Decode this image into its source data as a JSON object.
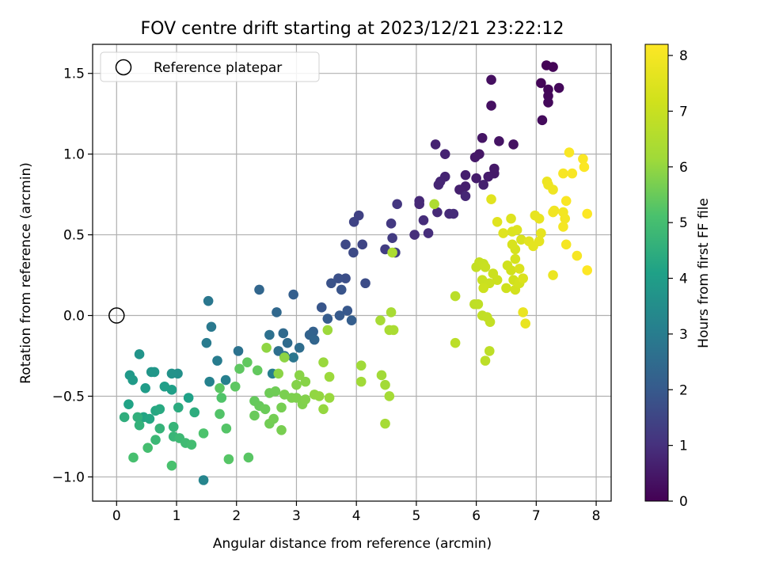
{
  "chart_data": {
    "type": "scatter",
    "title": "FOV centre drift starting at 2023/12/21 23:22:12",
    "xlabel": "Angular distance from reference (arcmin)",
    "ylabel": "Rotation from reference (arcmin)",
    "xlim": [
      -0.4,
      8.25
    ],
    "ylim": [
      -1.15,
      1.68
    ],
    "xticks": [
      0,
      1,
      2,
      3,
      4,
      5,
      6,
      7,
      8
    ],
    "yticks": [
      -1.0,
      -0.5,
      0.0,
      0.5,
      1.0,
      1.5
    ],
    "xtick_labels": [
      "0",
      "1",
      "2",
      "3",
      "4",
      "5",
      "6",
      "7",
      "8"
    ],
    "ytick_labels": [
      "−1.0",
      "−0.5",
      "0.0",
      "0.5",
      "1.0",
      "1.5"
    ],
    "grid": true,
    "legend": {
      "placement": "top-left",
      "entries": [
        {
          "label": "Reference platepar",
          "marker": "open-circle"
        }
      ]
    },
    "reference_point": {
      "x": 0,
      "y": 0
    },
    "colorbar": {
      "label": "Hours from first FF file",
      "colormap": "viridis",
      "range": [
        0,
        8.2
      ],
      "ticks": [
        0,
        1,
        2,
        3,
        4,
        5,
        6,
        7,
        8
      ],
      "tick_labels": [
        "0",
        "1",
        "2",
        "3",
        "4",
        "5",
        "6",
        "7",
        "8"
      ]
    },
    "points": [
      {
        "x": 7.17,
        "y": 1.55,
        "t": 0.05
      },
      {
        "x": 7.28,
        "y": 1.54,
        "t": 0.08
      },
      {
        "x": 7.08,
        "y": 1.44,
        "t": 0.1
      },
      {
        "x": 7.2,
        "y": 1.4,
        "t": 0.12
      },
      {
        "x": 7.38,
        "y": 1.41,
        "t": 0.14
      },
      {
        "x": 7.2,
        "y": 1.36,
        "t": 0.15
      },
      {
        "x": 7.2,
        "y": 1.32,
        "t": 0.17
      },
      {
        "x": 7.1,
        "y": 1.21,
        "t": 0.2
      },
      {
        "x": 6.25,
        "y": 1.46,
        "t": 0.3
      },
      {
        "x": 6.25,
        "y": 1.3,
        "t": 0.32
      },
      {
        "x": 6.62,
        "y": 1.06,
        "t": 0.35
      },
      {
        "x": 6.38,
        "y": 1.08,
        "t": 0.4
      },
      {
        "x": 6.1,
        "y": 1.1,
        "t": 0.42
      },
      {
        "x": 6.05,
        "y": 1.0,
        "t": 0.45
      },
      {
        "x": 5.98,
        "y": 0.98,
        "t": 0.48
      },
      {
        "x": 6.3,
        "y": 0.91,
        "t": 0.5
      },
      {
        "x": 6.3,
        "y": 0.88,
        "t": 0.52
      },
      {
        "x": 6.2,
        "y": 0.86,
        "t": 0.55
      },
      {
        "x": 6.0,
        "y": 0.85,
        "t": 0.57
      },
      {
        "x": 5.82,
        "y": 0.87,
        "t": 0.6
      },
      {
        "x": 5.82,
        "y": 0.8,
        "t": 0.62
      },
      {
        "x": 5.72,
        "y": 0.78,
        "t": 0.64
      },
      {
        "x": 6.12,
        "y": 0.81,
        "t": 0.66
      },
      {
        "x": 5.32,
        "y": 1.06,
        "t": 0.7
      },
      {
        "x": 5.48,
        "y": 1.0,
        "t": 0.72
      },
      {
        "x": 5.48,
        "y": 0.86,
        "t": 0.74
      },
      {
        "x": 5.4,
        "y": 0.83,
        "t": 0.76
      },
      {
        "x": 5.37,
        "y": 0.81,
        "t": 0.78
      },
      {
        "x": 5.82,
        "y": 0.74,
        "t": 0.8
      },
      {
        "x": 5.05,
        "y": 0.71,
        "t": 0.82
      },
      {
        "x": 5.05,
        "y": 0.69,
        "t": 0.84
      },
      {
        "x": 5.35,
        "y": 0.64,
        "t": 0.86
      },
      {
        "x": 5.55,
        "y": 0.63,
        "t": 0.88
      },
      {
        "x": 5.62,
        "y": 0.63,
        "t": 0.9
      },
      {
        "x": 5.12,
        "y": 0.59,
        "t": 0.92
      },
      {
        "x": 5.2,
        "y": 0.51,
        "t": 0.94
      },
      {
        "x": 4.97,
        "y": 0.5,
        "t": 0.96
      },
      {
        "x": 4.68,
        "y": 0.69,
        "t": 1.15
      },
      {
        "x": 4.58,
        "y": 0.57,
        "t": 1.2
      },
      {
        "x": 4.6,
        "y": 0.48,
        "t": 1.25
      },
      {
        "x": 4.48,
        "y": 0.41,
        "t": 1.3
      },
      {
        "x": 4.65,
        "y": 0.39,
        "t": 1.35
      },
      {
        "x": 4.04,
        "y": 0.62,
        "t": 1.4
      },
      {
        "x": 3.96,
        "y": 0.58,
        "t": 1.45
      },
      {
        "x": 4.1,
        "y": 0.44,
        "t": 1.5
      },
      {
        "x": 3.82,
        "y": 0.44,
        "t": 1.55
      },
      {
        "x": 3.95,
        "y": 0.39,
        "t": 1.6
      },
      {
        "x": 4.15,
        "y": 0.2,
        "t": 1.65
      },
      {
        "x": 3.82,
        "y": 0.23,
        "t": 1.7
      },
      {
        "x": 3.7,
        "y": 0.23,
        "t": 1.75
      },
      {
        "x": 3.58,
        "y": 0.2,
        "t": 1.8
      },
      {
        "x": 3.75,
        "y": 0.16,
        "t": 1.85
      },
      {
        "x": 3.42,
        "y": 0.05,
        "t": 1.9
      },
      {
        "x": 3.85,
        "y": 0.03,
        "t": 1.95
      },
      {
        "x": 3.72,
        "y": 0.0,
        "t": 2.0
      },
      {
        "x": 3.52,
        "y": -0.02,
        "t": 2.05
      },
      {
        "x": 3.92,
        "y": -0.03,
        "t": 2.1
      },
      {
        "x": 2.95,
        "y": 0.13,
        "t": 2.15
      },
      {
        "x": 3.28,
        "y": -0.1,
        "t": 2.2
      },
      {
        "x": 3.22,
        "y": -0.12,
        "t": 2.25
      },
      {
        "x": 3.3,
        "y": -0.15,
        "t": 2.3
      },
      {
        "x": 2.38,
        "y": 0.16,
        "t": 2.35
      },
      {
        "x": 2.67,
        "y": 0.02,
        "t": 2.4
      },
      {
        "x": 2.78,
        "y": -0.11,
        "t": 2.45
      },
      {
        "x": 2.85,
        "y": -0.17,
        "t": 2.5
      },
      {
        "x": 3.05,
        "y": -0.2,
        "t": 2.55
      },
      {
        "x": 2.7,
        "y": -0.22,
        "t": 2.6
      },
      {
        "x": 2.55,
        "y": -0.12,
        "t": 2.65
      },
      {
        "x": 2.03,
        "y": -0.22,
        "t": 2.7
      },
      {
        "x": 2.8,
        "y": -0.25,
        "t": 2.75
      },
      {
        "x": 2.95,
        "y": -0.26,
        "t": 2.8
      },
      {
        "x": 1.53,
        "y": 0.09,
        "t": 2.85
      },
      {
        "x": 1.58,
        "y": -0.07,
        "t": 2.9
      },
      {
        "x": 1.5,
        "y": -0.17,
        "t": 2.95
      },
      {
        "x": 1.68,
        "y": -0.28,
        "t": 3.0
      },
      {
        "x": 2.6,
        "y": -0.36,
        "t": 3.05
      },
      {
        "x": 1.82,
        "y": -0.4,
        "t": 3.1
      },
      {
        "x": 1.55,
        "y": -0.41,
        "t": 3.15
      },
      {
        "x": 1.45,
        "y": -1.02,
        "t": 3.25
      },
      {
        "x": 1.02,
        "y": -0.36,
        "t": 3.6
      },
      {
        "x": 0.92,
        "y": -0.36,
        "t": 3.65
      },
      {
        "x": 0.38,
        "y": -0.24,
        "t": 3.7
      },
      {
        "x": 0.58,
        "y": -0.35,
        "t": 3.75
      },
      {
        "x": 0.63,
        "y": -0.35,
        "t": 3.8
      },
      {
        "x": 0.22,
        "y": -0.37,
        "t": 3.85
      },
      {
        "x": 0.27,
        "y": -0.4,
        "t": 3.9
      },
      {
        "x": 0.48,
        "y": -0.45,
        "t": 3.95
      },
      {
        "x": 0.8,
        "y": -0.44,
        "t": 4.0
      },
      {
        "x": 0.92,
        "y": -0.46,
        "t": 4.05
      },
      {
        "x": 1.2,
        "y": -0.51,
        "t": 4.1
      },
      {
        "x": 0.2,
        "y": -0.55,
        "t": 4.15
      },
      {
        "x": 0.45,
        "y": -0.63,
        "t": 4.2
      },
      {
        "x": 0.55,
        "y": -0.64,
        "t": 4.25
      },
      {
        "x": 0.65,
        "y": -0.59,
        "t": 4.3
      },
      {
        "x": 0.72,
        "y": -0.58,
        "t": 4.35
      },
      {
        "x": 1.03,
        "y": -0.57,
        "t": 4.4
      },
      {
        "x": 1.3,
        "y": -0.6,
        "t": 4.45
      },
      {
        "x": 0.13,
        "y": -0.63,
        "t": 4.5
      },
      {
        "x": 0.35,
        "y": -0.63,
        "t": 4.55
      },
      {
        "x": 0.38,
        "y": -0.68,
        "t": 4.6
      },
      {
        "x": 0.72,
        "y": -0.7,
        "t": 4.65
      },
      {
        "x": 0.95,
        "y": -0.69,
        "t": 4.7
      },
      {
        "x": 0.95,
        "y": -0.75,
        "t": 4.75
      },
      {
        "x": 0.65,
        "y": -0.77,
        "t": 4.8
      },
      {
        "x": 1.05,
        "y": -0.76,
        "t": 4.85
      },
      {
        "x": 1.15,
        "y": -0.79,
        "t": 4.9
      },
      {
        "x": 1.25,
        "y": -0.8,
        "t": 4.95
      },
      {
        "x": 0.52,
        "y": -0.82,
        "t": 5.0
      },
      {
        "x": 0.28,
        "y": -0.88,
        "t": 5.05
      },
      {
        "x": 0.92,
        "y": -0.93,
        "t": 5.1
      },
      {
        "x": 1.45,
        "y": -0.73,
        "t": 5.15
      },
      {
        "x": 1.75,
        "y": -0.51,
        "t": 5.2
      },
      {
        "x": 1.72,
        "y": -0.61,
        "t": 5.22
      },
      {
        "x": 1.83,
        "y": -0.7,
        "t": 5.25
      },
      {
        "x": 1.87,
        "y": -0.89,
        "t": 5.27
      },
      {
        "x": 2.2,
        "y": -0.88,
        "t": 5.3
      },
      {
        "x": 1.72,
        "y": -0.45,
        "t": 5.32
      },
      {
        "x": 1.98,
        "y": -0.44,
        "t": 5.35
      },
      {
        "x": 2.05,
        "y": -0.33,
        "t": 5.37
      },
      {
        "x": 2.18,
        "y": -0.29,
        "t": 5.4
      },
      {
        "x": 2.35,
        "y": -0.34,
        "t": 5.42
      },
      {
        "x": 2.3,
        "y": -0.53,
        "t": 5.45
      },
      {
        "x": 2.38,
        "y": -0.56,
        "t": 5.47
      },
      {
        "x": 2.3,
        "y": -0.62,
        "t": 5.5
      },
      {
        "x": 2.48,
        "y": -0.58,
        "t": 5.52
      },
      {
        "x": 2.55,
        "y": -0.48,
        "t": 5.55
      },
      {
        "x": 2.65,
        "y": -0.47,
        "t": 5.57
      },
      {
        "x": 2.55,
        "y": -0.67,
        "t": 5.6
      },
      {
        "x": 2.62,
        "y": -0.64,
        "t": 5.62
      },
      {
        "x": 2.75,
        "y": -0.57,
        "t": 5.65
      },
      {
        "x": 2.75,
        "y": -0.71,
        "t": 5.67
      },
      {
        "x": 2.8,
        "y": -0.49,
        "t": 5.7
      },
      {
        "x": 2.92,
        "y": -0.51,
        "t": 5.72
      },
      {
        "x": 3.0,
        "y": -0.51,
        "t": 5.75
      },
      {
        "x": 3.1,
        "y": -0.55,
        "t": 5.77
      },
      {
        "x": 3.15,
        "y": -0.52,
        "t": 5.8
      },
      {
        "x": 3.0,
        "y": -0.43,
        "t": 5.82
      },
      {
        "x": 3.15,
        "y": -0.41,
        "t": 5.85
      },
      {
        "x": 3.05,
        "y": -0.37,
        "t": 5.87
      },
      {
        "x": 2.7,
        "y": -0.36,
        "t": 5.9
      },
      {
        "x": 2.8,
        "y": -0.26,
        "t": 5.92
      },
      {
        "x": 2.5,
        "y": -0.2,
        "t": 5.95
      },
      {
        "x": 3.3,
        "y": -0.49,
        "t": 5.97
      },
      {
        "x": 3.38,
        "y": -0.5,
        "t": 6.0
      },
      {
        "x": 3.45,
        "y": -0.58,
        "t": 6.02
      },
      {
        "x": 3.55,
        "y": -0.51,
        "t": 6.05
      },
      {
        "x": 3.45,
        "y": -0.29,
        "t": 6.07
      },
      {
        "x": 3.55,
        "y": -0.38,
        "t": 6.1
      },
      {
        "x": 3.52,
        "y": -0.09,
        "t": 6.12
      },
      {
        "x": 4.08,
        "y": -0.31,
        "t": 6.15
      },
      {
        "x": 4.08,
        "y": -0.41,
        "t": 6.17
      },
      {
        "x": 4.42,
        "y": -0.37,
        "t": 6.2
      },
      {
        "x": 4.48,
        "y": -0.43,
        "t": 6.22
      },
      {
        "x": 4.55,
        "y": -0.5,
        "t": 6.25
      },
      {
        "x": 4.48,
        "y": -0.67,
        "t": 6.27
      },
      {
        "x": 4.4,
        "y": -0.03,
        "t": 6.3
      },
      {
        "x": 4.58,
        "y": 0.02,
        "t": 6.32
      },
      {
        "x": 4.55,
        "y": -0.09,
        "t": 6.35
      },
      {
        "x": 4.62,
        "y": -0.09,
        "t": 6.37
      },
      {
        "x": 4.6,
        "y": 0.39,
        "t": 6.4
      },
      {
        "x": 5.3,
        "y": 0.69,
        "t": 6.45
      },
      {
        "x": 5.65,
        "y": 0.12,
        "t": 6.7
      },
      {
        "x": 5.65,
        "y": -0.17,
        "t": 6.72
      },
      {
        "x": 6.15,
        "y": -0.28,
        "t": 6.75
      },
      {
        "x": 6.22,
        "y": -0.22,
        "t": 6.77
      },
      {
        "x": 5.97,
        "y": 0.07,
        "t": 6.8
      },
      {
        "x": 6.03,
        "y": 0.07,
        "t": 6.82
      },
      {
        "x": 6.1,
        "y": 0.0,
        "t": 6.85
      },
      {
        "x": 6.18,
        "y": -0.01,
        "t": 6.87
      },
      {
        "x": 6.23,
        "y": -0.04,
        "t": 6.9
      },
      {
        "x": 6.0,
        "y": 0.3,
        "t": 6.92
      },
      {
        "x": 6.05,
        "y": 0.33,
        "t": 6.95
      },
      {
        "x": 6.12,
        "y": 0.32,
        "t": 6.97
      },
      {
        "x": 6.15,
        "y": 0.3,
        "t": 7.0
      },
      {
        "x": 6.1,
        "y": 0.22,
        "t": 7.02
      },
      {
        "x": 6.22,
        "y": 0.2,
        "t": 7.05
      },
      {
        "x": 6.28,
        "y": 0.26,
        "t": 7.07
      },
      {
        "x": 6.35,
        "y": 0.22,
        "t": 7.1
      },
      {
        "x": 6.12,
        "y": 0.17,
        "t": 7.12
      },
      {
        "x": 6.5,
        "y": 0.17,
        "t": 7.15
      },
      {
        "x": 6.52,
        "y": 0.31,
        "t": 7.17
      },
      {
        "x": 6.58,
        "y": 0.28,
        "t": 7.2
      },
      {
        "x": 6.62,
        "y": 0.22,
        "t": 7.22
      },
      {
        "x": 6.65,
        "y": 0.16,
        "t": 7.25
      },
      {
        "x": 6.72,
        "y": 0.2,
        "t": 7.27
      },
      {
        "x": 6.65,
        "y": 0.35,
        "t": 7.3
      },
      {
        "x": 6.65,
        "y": 0.41,
        "t": 7.32
      },
      {
        "x": 6.6,
        "y": 0.44,
        "t": 7.35
      },
      {
        "x": 6.75,
        "y": 0.47,
        "t": 7.37
      },
      {
        "x": 6.72,
        "y": 0.29,
        "t": 7.4
      },
      {
        "x": 6.78,
        "y": 0.23,
        "t": 7.42
      },
      {
        "x": 6.6,
        "y": 0.52,
        "t": 7.45
      },
      {
        "x": 6.68,
        "y": 0.53,
        "t": 7.47
      },
      {
        "x": 6.58,
        "y": 0.6,
        "t": 7.5
      },
      {
        "x": 6.45,
        "y": 0.51,
        "t": 7.52
      },
      {
        "x": 6.35,
        "y": 0.58,
        "t": 7.55
      },
      {
        "x": 6.25,
        "y": 0.72,
        "t": 7.57
      },
      {
        "x": 6.88,
        "y": 0.46,
        "t": 7.6
      },
      {
        "x": 6.95,
        "y": 0.43,
        "t": 7.62
      },
      {
        "x": 7.05,
        "y": 0.46,
        "t": 7.65
      },
      {
        "x": 7.08,
        "y": 0.51,
        "t": 7.67
      },
      {
        "x": 6.98,
        "y": 0.62,
        "t": 7.7
      },
      {
        "x": 7.05,
        "y": 0.6,
        "t": 7.72
      },
      {
        "x": 6.82,
        "y": -0.05,
        "t": 7.75
      },
      {
        "x": 6.78,
        "y": 0.02,
        "t": 7.77
      },
      {
        "x": 7.28,
        "y": 0.25,
        "t": 7.8
      },
      {
        "x": 7.18,
        "y": 0.83,
        "t": 7.82
      },
      {
        "x": 7.2,
        "y": 0.81,
        "t": 7.85
      },
      {
        "x": 7.28,
        "y": 0.78,
        "t": 7.87
      },
      {
        "x": 7.3,
        "y": 0.65,
        "t": 7.9
      },
      {
        "x": 7.28,
        "y": 0.64,
        "t": 7.92
      },
      {
        "x": 7.45,
        "y": 0.64,
        "t": 7.95
      },
      {
        "x": 7.48,
        "y": 0.6,
        "t": 7.97
      },
      {
        "x": 7.45,
        "y": 0.55,
        "t": 8.0
      },
      {
        "x": 7.5,
        "y": 0.44,
        "t": 8.02
      },
      {
        "x": 7.68,
        "y": 0.37,
        "t": 8.04
      },
      {
        "x": 7.45,
        "y": 0.88,
        "t": 8.06
      },
      {
        "x": 7.6,
        "y": 0.88,
        "t": 8.08
      },
      {
        "x": 7.5,
        "y": 0.71,
        "t": 8.1
      },
      {
        "x": 7.55,
        "y": 1.01,
        "t": 8.12
      },
      {
        "x": 7.78,
        "y": 0.97,
        "t": 8.14
      },
      {
        "x": 7.8,
        "y": 0.92,
        "t": 8.16
      },
      {
        "x": 7.85,
        "y": 0.63,
        "t": 8.18
      },
      {
        "x": 7.85,
        "y": 0.28,
        "t": 8.2
      }
    ]
  }
}
